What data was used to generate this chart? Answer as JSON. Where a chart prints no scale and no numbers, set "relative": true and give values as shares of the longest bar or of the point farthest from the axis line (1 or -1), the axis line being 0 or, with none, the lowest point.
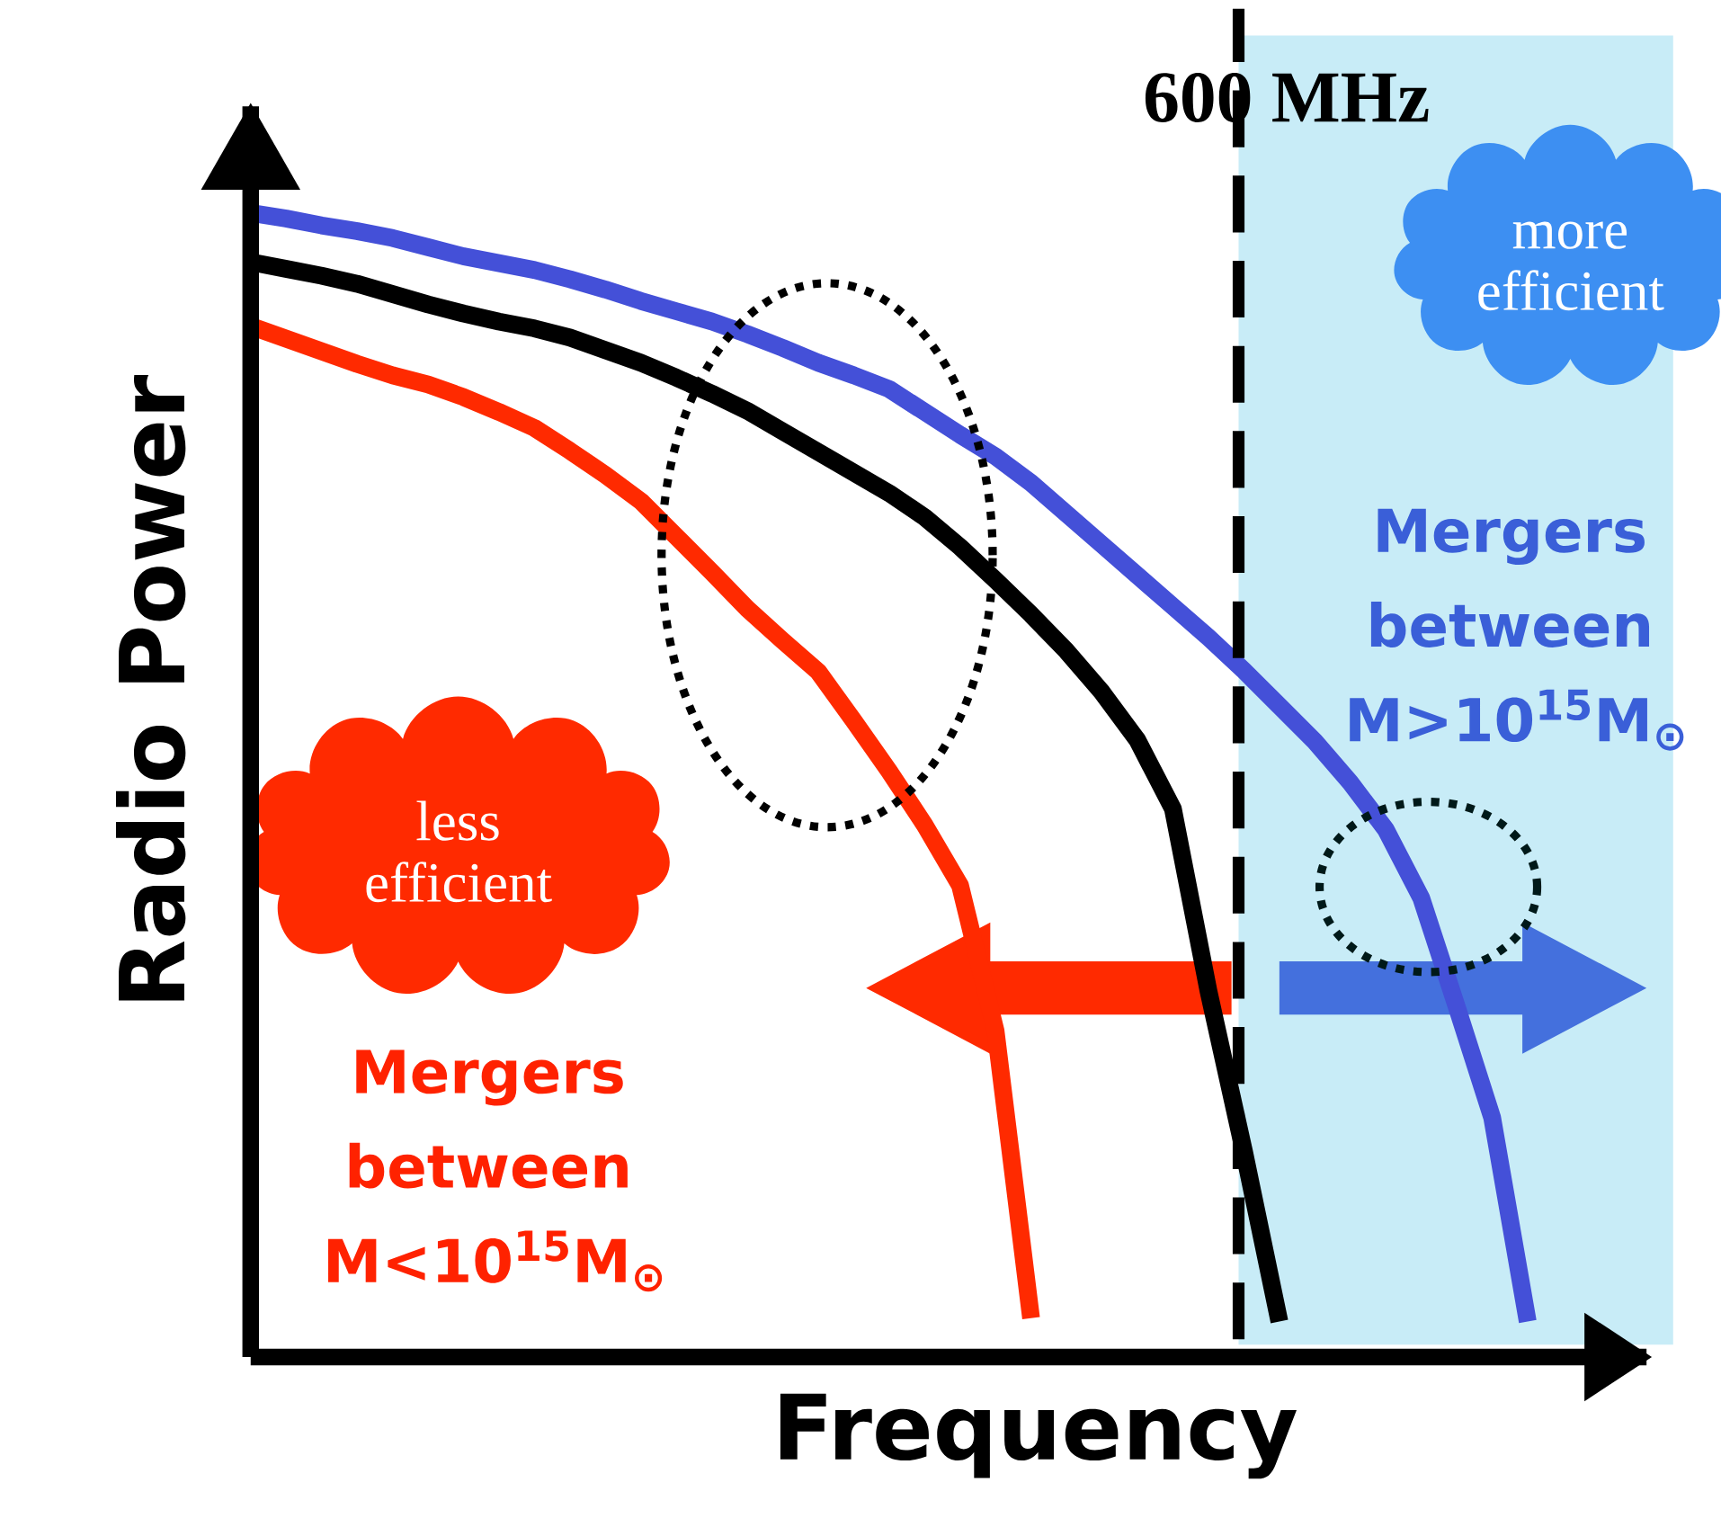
{
  "chart_data": {
    "type": "line",
    "relative": true,
    "xlabel": "Frequency",
    "ylabel": "Radio Power",
    "marker": "none",
    "line_style": "solid",
    "categories": [
      null,
      null,
      null,
      null,
      null,
      null,
      null,
      null,
      null,
      null,
      null,
      null,
      null,
      null,
      null,
      null,
      null,
      null,
      null,
      null,
      null,
      null,
      null,
      null,
      null,
      null,
      null,
      null,
      null,
      null,
      null,
      null,
      null,
      null,
      null,
      null,
      null
    ],
    "series": [
      {
        "color": "#4450d8",
        "values": [
          1.0,
          0.995,
          0.989,
          0.984,
          0.978,
          0.97,
          0.962,
          0.956,
          0.95,
          0.942,
          0.933,
          0.923,
          0.914,
          0.905,
          0.894,
          0.882,
          0.869,
          0.858,
          0.846,
          0.826,
          0.806,
          0.787,
          0.764,
          0.737,
          0.71,
          0.683,
          0.656,
          0.629,
          0.6,
          0.569,
          0.538,
          0.502,
          0.461,
          0.401,
          0.306,
          0.209,
          0.031
        ]
      },
      {
        "color": "#000000",
        "values": [
          0.957,
          0.951,
          0.945,
          0.938,
          0.929,
          0.92,
          0.912,
          0.905,
          0.899,
          0.891,
          0.88,
          0.869,
          0.856,
          0.842,
          0.827,
          0.809,
          0.791,
          0.773,
          0.755,
          0.734,
          0.708,
          0.679,
          0.649,
          0.617,
          0.581,
          0.539,
          0.479,
          0.32,
          0.18,
          0.031,
          null,
          null,
          null,
          null,
          null,
          null,
          null
        ]
      },
      {
        "color": "#ff2a00",
        "values": [
          0.901,
          0.89,
          0.879,
          0.868,
          0.858,
          0.85,
          0.839,
          0.826,
          0.812,
          0.792,
          0.771,
          0.748,
          0.717,
          0.686,
          0.654,
          0.626,
          0.599,
          0.556,
          0.512,
          0.465,
          0.412,
          0.285,
          0.034,
          null,
          null,
          null,
          null,
          null,
          null,
          null,
          null,
          null,
          null,
          null,
          null,
          null,
          null
        ]
      }
    ],
    "annotations": [
      "more efficient",
      "less efficient",
      "Mergers between M>10$^{15}$M$_{⊙}$",
      "Mergers between M<10$^{15}$M$_{⊙}$",
      "600 MHz"
    ]
  }
}
